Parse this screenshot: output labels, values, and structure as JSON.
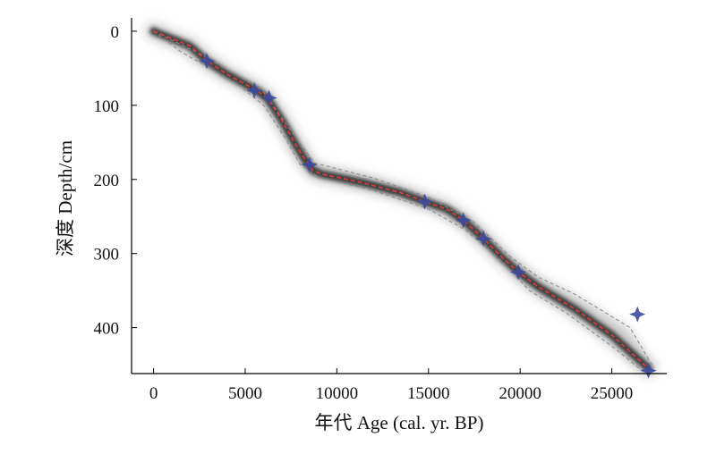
{
  "chart_data": {
    "type": "line",
    "title": "",
    "xlabel": "年代 Age (cal. yr. BP)",
    "ylabel": "深度 Depth/cm",
    "xlim": [
      -1200,
      28000
    ],
    "ylim": [
      462,
      -18
    ],
    "y_inverted": true,
    "x_ticks": [
      0,
      5000,
      10000,
      15000,
      20000,
      25000
    ],
    "y_ticks": [
      0,
      100,
      200,
      300,
      400
    ],
    "grid": false,
    "legend": "none",
    "colors": {
      "age_model_median": "#e23a3a",
      "uncertainty_envelope": "#222222",
      "envelope_bounds": "#888888",
      "dated_samples": "#3b4aa0"
    },
    "series": [
      {
        "kind": "median",
        "x": [
          0,
          2000,
          2900,
          4000,
          5500,
          6200,
          7000,
          7800,
          8300,
          8700,
          9200,
          10000,
          11500,
          13500,
          14800,
          16000,
          16900,
          18000,
          19000,
          19900,
          21000,
          23000,
          25000,
          27000
        ],
        "y": [
          0,
          20,
          40,
          58,
          78,
          90,
          120,
          155,
          175,
          188,
          193,
          197,
          205,
          218,
          230,
          240,
          255,
          280,
          305,
          325,
          345,
          375,
          410,
          455
        ]
      },
      {
        "kind": "lower_bound",
        "x": [
          0,
          2500,
          5000,
          6000,
          7800,
          8800,
          12000,
          15000,
          17500,
          19500,
          21000,
          23000,
          26000,
          27300
        ],
        "y": [
          0,
          30,
          66,
          82,
          145,
          178,
          198,
          224,
          258,
          305,
          332,
          355,
          400,
          455
        ]
      },
      {
        "kind": "upper_bound",
        "x": [
          0,
          1500,
          4500,
          6000,
          7200,
          8000,
          9000,
          12000,
          15000,
          17000,
          19000,
          20500,
          22500,
          25000,
          26500
        ],
        "y": [
          0,
          28,
          70,
          100,
          145,
          180,
          197,
          215,
          240,
          268,
          310,
          350,
          380,
          425,
          455
        ]
      }
    ],
    "dated_samples": {
      "x": [
        2900,
        5500,
        6300,
        8500,
        14800,
        16900,
        18000,
        19900,
        26400,
        27000
      ],
      "y": [
        40,
        80,
        90,
        180,
        230,
        255,
        280,
        325,
        382,
        458
      ]
    }
  }
}
